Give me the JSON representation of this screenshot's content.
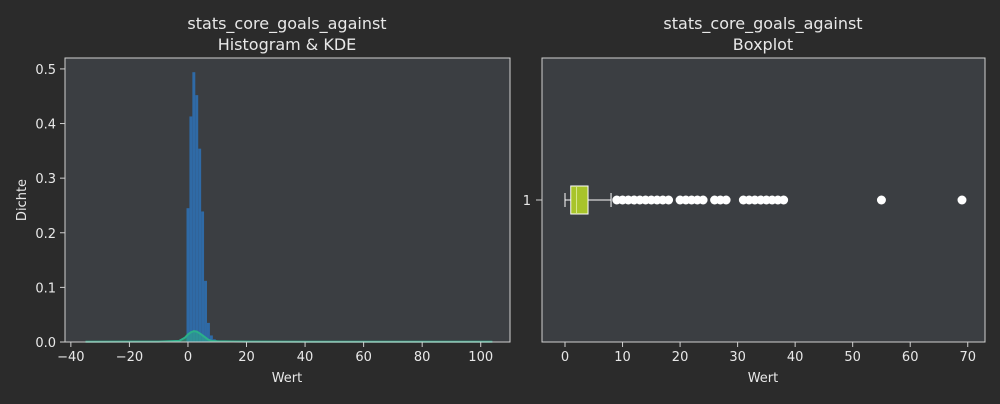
{
  "colors": {
    "background": "#2b2b2b",
    "axes_bg": "#3b3e42",
    "text": "#e8e8e8",
    "spine": "#d0d0d0",
    "hist": "#2f6aa6",
    "kde": "#2bb08a",
    "box": "#a8c42a",
    "whisker": "#ffffff",
    "flier": "#ffffff"
  },
  "chart_data": [
    {
      "type": "histogram",
      "title_line1": "stats_core_goals_against",
      "title_line2": "Histogram & KDE",
      "xlabel": "Wert",
      "ylabel": "Dichte",
      "xlim": [
        -42,
        110
      ],
      "ylim": [
        0,
        0.52
      ],
      "xticks": [
        -40,
        -20,
        0,
        20,
        40,
        60,
        80,
        100
      ],
      "xtick_labels": [
        "−40",
        "−20",
        "0",
        "20",
        "40",
        "60",
        "80",
        "100"
      ],
      "yticks": [
        0.0,
        0.1,
        0.2,
        0.3,
        0.4,
        0.5
      ],
      "ytick_labels": [
        "0.0",
        "0.1",
        "0.2",
        "0.3",
        "0.4",
        "0.5"
      ],
      "bin_edges": [
        -0.5,
        0.5,
        1.5,
        2.5,
        3.5,
        4.5,
        5.5,
        6.5,
        7.5,
        8.5,
        9.5,
        10.5,
        11.5,
        12.5
      ],
      "densities": [
        0.245,
        0.413,
        0.494,
        0.452,
        0.354,
        0.239,
        0.112,
        0.035,
        0.012,
        0.005,
        0.003,
        0.002,
        0.001
      ],
      "kde": {
        "x": [
          -35,
          -10,
          -3,
          -1,
          0,
          1,
          2,
          3,
          4,
          5,
          6,
          7,
          8,
          10,
          15,
          20,
          40,
          70,
          104
        ],
        "y": [
          0.0005,
          0.0008,
          0.002,
          0.008,
          0.014,
          0.018,
          0.02,
          0.019,
          0.016,
          0.012,
          0.008,
          0.004,
          0.002,
          0.0012,
          0.001,
          0.0008,
          0.0006,
          0.0006,
          0.0005
        ]
      }
    },
    {
      "type": "boxplot",
      "title_line1": "stats_core_goals_against",
      "title_line2": "Boxplot",
      "xlabel": "Wert",
      "category": "1",
      "xlim": [
        -4,
        73
      ],
      "xticks": [
        0,
        10,
        20,
        30,
        40,
        50,
        60,
        70
      ],
      "xtick_labels": [
        "0",
        "10",
        "20",
        "30",
        "40",
        "50",
        "60",
        "70"
      ],
      "min": 0,
      "q1": 1,
      "median": 2,
      "q3": 4,
      "whisker_high": 8,
      "outliers": [
        9,
        10,
        11,
        12,
        13,
        14,
        15,
        16,
        17,
        18,
        20,
        21,
        22,
        23,
        24,
        26,
        27,
        28,
        31,
        32,
        33,
        34,
        35,
        36,
        37,
        38,
        55,
        69
      ]
    }
  ]
}
